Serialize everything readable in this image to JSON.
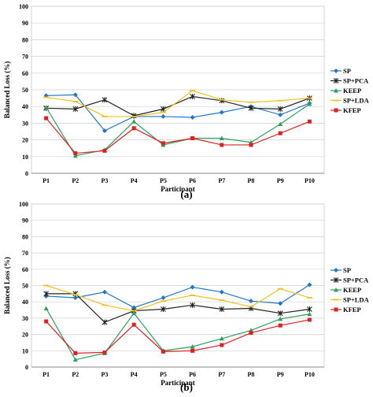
{
  "chart_data": [
    {
      "type": "line",
      "panel_label": "(a)",
      "xlabel": "Participant",
      "ylabel": "Balanced Loss (%)",
      "ylim": [
        0,
        100
      ],
      "yticks": [
        0,
        10,
        20,
        30,
        40,
        50,
        60,
        70,
        80,
        90,
        100
      ],
      "grid": true,
      "legend": "right",
      "categories": [
        "P1",
        "P2",
        "P3",
        "P4",
        "P5",
        "P6",
        "P7",
        "P8",
        "P9",
        "P10"
      ],
      "series": [
        {
          "name": "SP",
          "color": "#1f77c8",
          "marker": "diamond",
          "values": [
            46.5,
            47,
            25.5,
            34,
            34,
            33.5,
            36.5,
            40,
            35,
            42
          ]
        },
        {
          "name": "SP+PCA",
          "color": "#222222",
          "marker": "star",
          "values": [
            39,
            38.5,
            44,
            34.5,
            38.5,
            46,
            43.5,
            39,
            38.5,
            45
          ]
        },
        {
          "name": "KEEP",
          "color": "#2ca05a",
          "marker": "triangle",
          "values": [
            39.5,
            10.5,
            14,
            31,
            17,
            21,
            21,
            18.5,
            29.5,
            41.5
          ]
        },
        {
          "name": "SP+LDA",
          "color": "#f0c020",
          "marker": "dash",
          "values": [
            45.5,
            43,
            34,
            34,
            36.5,
            49.5,
            44,
            42.5,
            43.5,
            45
          ]
        },
        {
          "name": "KFEP",
          "color": "#e02020",
          "marker": "square",
          "values": [
            33,
            12,
            13.5,
            27,
            18,
            21,
            17,
            17,
            24,
            31
          ]
        }
      ]
    },
    {
      "type": "line",
      "panel_label": "(b)",
      "xlabel": "Participant",
      "ylabel": "Balanced Loss (%)",
      "ylim": [
        0,
        100
      ],
      "yticks": [
        0,
        10,
        20,
        30,
        40,
        50,
        60,
        70,
        80,
        90,
        100
      ],
      "grid": true,
      "legend": "right",
      "categories": [
        "P1",
        "P2",
        "P3",
        "P4",
        "P5",
        "P6",
        "P7",
        "P8",
        "P9",
        "P10"
      ],
      "series": [
        {
          "name": "SP",
          "color": "#1f77c8",
          "marker": "diamond",
          "values": [
            43.5,
            42.5,
            46,
            36.5,
            42.5,
            49,
            46,
            40.5,
            39,
            50.5
          ]
        },
        {
          "name": "SP+PCA",
          "color": "#222222",
          "marker": "star",
          "values": [
            45,
            45,
            27.5,
            34.5,
            35.5,
            38,
            35.5,
            36,
            33,
            35.5
          ]
        },
        {
          "name": "KEEP",
          "color": "#2ca05a",
          "marker": "triangle",
          "values": [
            36,
            4.5,
            8.5,
            33,
            10,
            12.5,
            17.5,
            22.5,
            29.5,
            32.5
          ]
        },
        {
          "name": "SP+LDA",
          "color": "#f0c020",
          "marker": "dash",
          "values": [
            50,
            44.5,
            38,
            34.5,
            40.5,
            44,
            41,
            37,
            48,
            42.5
          ]
        },
        {
          "name": "KFEP",
          "color": "#e02020",
          "marker": "square",
          "values": [
            28,
            8.5,
            9,
            26,
            9.5,
            10,
            13.5,
            21,
            25.5,
            29
          ]
        }
      ]
    }
  ]
}
